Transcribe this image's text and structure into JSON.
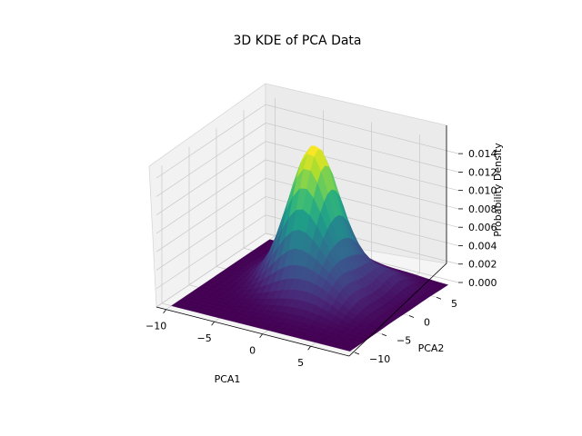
{
  "chart_data": {
    "type": "surface3d",
    "title": "3D KDE of PCA Data",
    "xlabel": "PCA1",
    "ylabel": "PCA2",
    "zlabel": "Probability Density",
    "xlim": [
      -11,
      9
    ],
    "ylim": [
      -11,
      9
    ],
    "zlim": [
      0,
      0.015
    ],
    "xticks": [
      -10,
      -5,
      0,
      5
    ],
    "yticks": [
      -10,
      -5,
      0,
      5
    ],
    "zticks": [
      0.0,
      0.002,
      0.004,
      0.006,
      0.008,
      0.01,
      0.012,
      0.014
    ],
    "colormap": "viridis",
    "grid": true,
    "peak": {
      "x": -2,
      "y": 2,
      "density": 0.0145
    }
  }
}
